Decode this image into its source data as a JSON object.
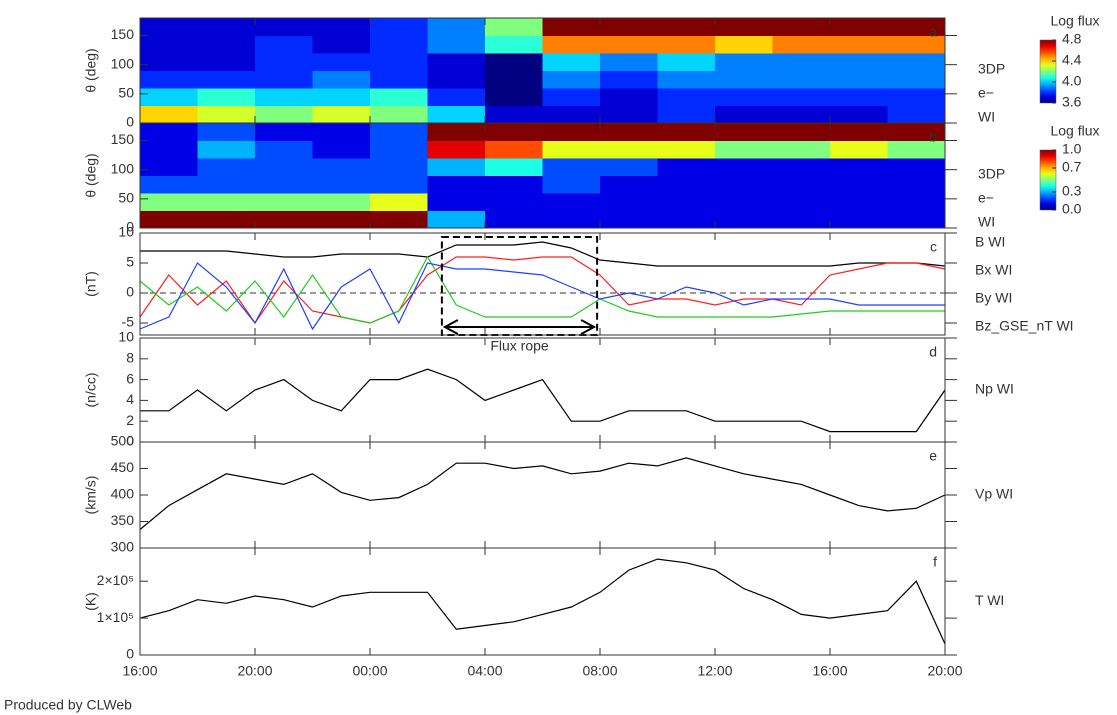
{
  "chart_data": [
    {
      "type": "heatmap",
      "label": "a",
      "ylabel": "θ (deg)",
      "side_labels": [
        "3DP",
        "e−",
        "WI"
      ],
      "ylim": [
        0,
        180
      ],
      "yticks": [
        0,
        50,
        100,
        150
      ],
      "xbins": [
        0,
        2,
        4,
        6,
        8,
        10,
        12,
        14,
        16,
        18,
        20,
        22,
        24,
        26,
        28
      ],
      "ybins": [
        0,
        30,
        60,
        90,
        120,
        150,
        180
      ],
      "z": [
        [
          4.4,
          4.3,
          4.2,
          4.3,
          4.2,
          4.0,
          3.7,
          3.7,
          3.7,
          3.8,
          3.7,
          3.7,
          3.7,
          3.8
        ],
        [
          4.0,
          4.1,
          4.0,
          4.0,
          4.1,
          3.8,
          3.6,
          3.8,
          3.7,
          3.8,
          3.8,
          3.8,
          3.8,
          3.8
        ],
        [
          3.8,
          3.8,
          3.8,
          3.9,
          3.8,
          3.7,
          3.6,
          3.9,
          3.8,
          3.9,
          3.9,
          3.9,
          3.9,
          3.9
        ],
        [
          3.7,
          3.7,
          3.8,
          3.8,
          3.8,
          3.7,
          3.6,
          4.0,
          3.9,
          4.0,
          3.9,
          3.9,
          3.9,
          3.9
        ],
        [
          3.7,
          3.7,
          3.8,
          3.7,
          3.8,
          3.9,
          4.1,
          4.5,
          4.5,
          4.5,
          4.4,
          4.5,
          4.5,
          4.5
        ],
        [
          3.7,
          3.7,
          3.7,
          3.7,
          3.8,
          3.9,
          4.2,
          4.8,
          4.8,
          4.8,
          4.8,
          4.8,
          4.8,
          4.8
        ]
      ],
      "colorbar": {
        "title": "Log flux",
        "clim": [
          3.6,
          4.8
        ],
        "ticks": [
          3.6,
          {
            "value": 4,
            "label": "4.0"
          },
          4.4,
          4.8
        ]
      }
    },
    {
      "type": "heatmap",
      "label": "b",
      "ylabel": "θ (deg)",
      "side_labels": [
        "3DP",
        "e−",
        "WI"
      ],
      "ylim": [
        0,
        180
      ],
      "yticks": [
        0,
        50,
        100,
        150
      ],
      "xbins": [
        0,
        2,
        4,
        6,
        8,
        10,
        12,
        14,
        16,
        18,
        20,
        22,
        24,
        26,
        28
      ],
      "ybins": [
        0,
        30,
        60,
        90,
        120,
        150,
        180
      ],
      "z": [
        [
          1.0,
          1.0,
          1.0,
          1.0,
          1.0,
          0.3,
          0.1,
          0.1,
          0.1,
          0.1,
          0.1,
          0.1,
          0.1,
          0.1
        ],
        [
          0.5,
          0.5,
          0.5,
          0.5,
          0.6,
          0.1,
          0.1,
          0.1,
          0.1,
          0.1,
          0.1,
          0.1,
          0.1,
          0.1
        ],
        [
          0.2,
          0.2,
          0.2,
          0.2,
          0.2,
          0.1,
          0.1,
          0.2,
          0.1,
          0.1,
          0.1,
          0.1,
          0.1,
          0.1
        ],
        [
          0.1,
          0.2,
          0.2,
          0.2,
          0.2,
          0.3,
          0.4,
          0.2,
          0.2,
          0.1,
          0.1,
          0.1,
          0.1,
          0.1
        ],
        [
          0.1,
          0.3,
          0.2,
          0.1,
          0.2,
          0.9,
          0.8,
          0.6,
          0.6,
          0.6,
          0.5,
          0.5,
          0.6,
          0.5
        ],
        [
          0.1,
          0.2,
          0.1,
          0.1,
          0.2,
          1.0,
          1.0,
          1.0,
          1.0,
          1.0,
          1.0,
          1.0,
          1.0,
          1.0
        ]
      ],
      "colorbar": {
        "title": "Log flux",
        "clim": [
          0,
          1
        ],
        "ticks": [
          {
            "value": 0,
            "label": "0.0"
          },
          0.3,
          0.7,
          {
            "value": 1,
            "label": "1.0"
          }
        ]
      }
    },
    {
      "type": "line",
      "label": "c",
      "ylabel": "(nT)",
      "ylim": [
        -7,
        10
      ],
      "yticks": [
        -5,
        0,
        5,
        10
      ],
      "zero_line": true,
      "x": [
        0,
        1,
        2,
        3,
        4,
        5,
        6,
        7,
        8,
        9,
        10,
        11,
        12,
        13,
        14,
        15,
        16,
        17,
        18,
        19,
        20,
        21,
        22,
        23,
        24,
        25,
        26,
        27,
        28
      ],
      "series": [
        {
          "name": "B WI",
          "color": "#000000",
          "values": [
            7,
            7,
            7,
            7,
            6.5,
            6,
            6,
            6.5,
            6.5,
            6.5,
            6,
            8,
            8,
            8,
            8.5,
            7.5,
            5.5,
            5,
            4.5,
            4.5,
            4.5,
            4.5,
            4.5,
            4.5,
            4.5,
            5,
            5,
            5,
            4.5
          ]
        },
        {
          "name": "Bx WI",
          "color": "#ff2020",
          "values": [
            -4,
            3,
            -2,
            2,
            -5,
            2,
            -3,
            -4,
            -5,
            -3,
            3,
            6,
            6,
            5.5,
            6,
            6,
            3,
            -2,
            -1,
            -1,
            -2,
            -1,
            -1,
            -2,
            3,
            4,
            5,
            5,
            4
          ]
        },
        {
          "name": "By WI",
          "color": "#22cc22",
          "values": [
            2,
            -2,
            1,
            -3,
            2,
            -4,
            3,
            -4,
            -5,
            -3,
            6,
            -2,
            -4,
            -4,
            -4,
            -4,
            -1,
            -3,
            -4,
            -4,
            -4,
            -4,
            -4,
            -3.5,
            -3,
            -3,
            -3,
            -3,
            -3
          ]
        },
        {
          "name": "Bz_GSE_nT WI",
          "color": "#2040ff",
          "values": [
            -6,
            -4,
            5,
            1,
            -5,
            4,
            -6,
            1,
            4,
            -5,
            5,
            4,
            4,
            3.5,
            3,
            1,
            -1,
            0,
            -1,
            1,
            0,
            -2,
            -1,
            -1,
            -1,
            -2,
            -2,
            -2,
            -2
          ]
        }
      ],
      "annotation": {
        "text": "Flux rope",
        "x_range": [
          10.5,
          15.9
        ]
      }
    },
    {
      "type": "line",
      "label": "d",
      "ylabel": "(n/cc)",
      "ylim": [
        0,
        10
      ],
      "yticks": [
        0,
        2,
        4,
        6,
        8,
        10
      ],
      "x": [
        0,
        1,
        2,
        3,
        4,
        5,
        6,
        7,
        8,
        9,
        10,
        11,
        12,
        13,
        14,
        15,
        16,
        17,
        18,
        19,
        20,
        21,
        22,
        23,
        24,
        25,
        26,
        27,
        28
      ],
      "series": [
        {
          "name": "Np WI",
          "color": "#000000",
          "values": [
            3,
            3,
            5,
            3,
            5,
            6,
            4,
            3,
            6,
            6,
            7,
            6,
            4,
            5,
            6,
            2,
            2,
            3,
            3,
            3,
            2,
            2,
            2,
            2,
            1,
            1,
            1,
            1,
            5
          ]
        }
      ]
    },
    {
      "type": "line",
      "label": "e",
      "ylabel": "(km/s)",
      "ylim": [
        300,
        500
      ],
      "yticks": [
        300,
        350,
        400,
        450,
        500
      ],
      "x": [
        0,
        1,
        2,
        3,
        4,
        5,
        6,
        7,
        8,
        9,
        10,
        11,
        12,
        13,
        14,
        15,
        16,
        17,
        18,
        19,
        20,
        21,
        22,
        23,
        24,
        25,
        26,
        27,
        28
      ],
      "series": [
        {
          "name": "Vp WI",
          "color": "#000000",
          "values": [
            335,
            380,
            410,
            440,
            430,
            420,
            440,
            405,
            390,
            395,
            420,
            460,
            460,
            450,
            455,
            440,
            445,
            460,
            455,
            470,
            455,
            440,
            430,
            420,
            400,
            380,
            370,
            375,
            400
          ]
        }
      ]
    },
    {
      "type": "line",
      "label": "f",
      "ylabel": "(K)",
      "ylim": [
        0,
        290000
      ],
      "yticks": [
        0,
        {
          "value": 100000,
          "label": "1×10⁵"
        },
        {
          "value": 200000,
          "label": "2×10⁵"
        }
      ],
      "xlim": [
        0,
        28
      ],
      "xticks": [
        {
          "value": 0,
          "label": "16:00"
        },
        {
          "value": 4,
          "label": "20:00"
        },
        {
          "value": 8,
          "label": "00:00"
        },
        {
          "value": 12,
          "label": "04:00"
        },
        {
          "value": 16,
          "label": "08:00"
        },
        {
          "value": 20,
          "label": "12:00"
        },
        {
          "value": 24,
          "label": "16:00"
        },
        {
          "value": 28,
          "label": "20:00"
        }
      ],
      "x": [
        0,
        1,
        2,
        3,
        4,
        5,
        6,
        7,
        8,
        9,
        10,
        11,
        12,
        13,
        14,
        15,
        16,
        17,
        18,
        19,
        20,
        21,
        22,
        23,
        24,
        25,
        26,
        27,
        28
      ],
      "series": [
        {
          "name": "T WI",
          "color": "#000000",
          "values": [
            100000,
            120000,
            150000,
            140000,
            160000,
            150000,
            130000,
            160000,
            170000,
            170000,
            170000,
            70000,
            80000,
            90000,
            110000,
            130000,
            170000,
            230000,
            260000,
            250000,
            230000,
            180000,
            150000,
            110000,
            100000,
            110000,
            120000,
            200000,
            30000
          ]
        }
      ]
    }
  ],
  "footer": "Produced by CLWeb"
}
